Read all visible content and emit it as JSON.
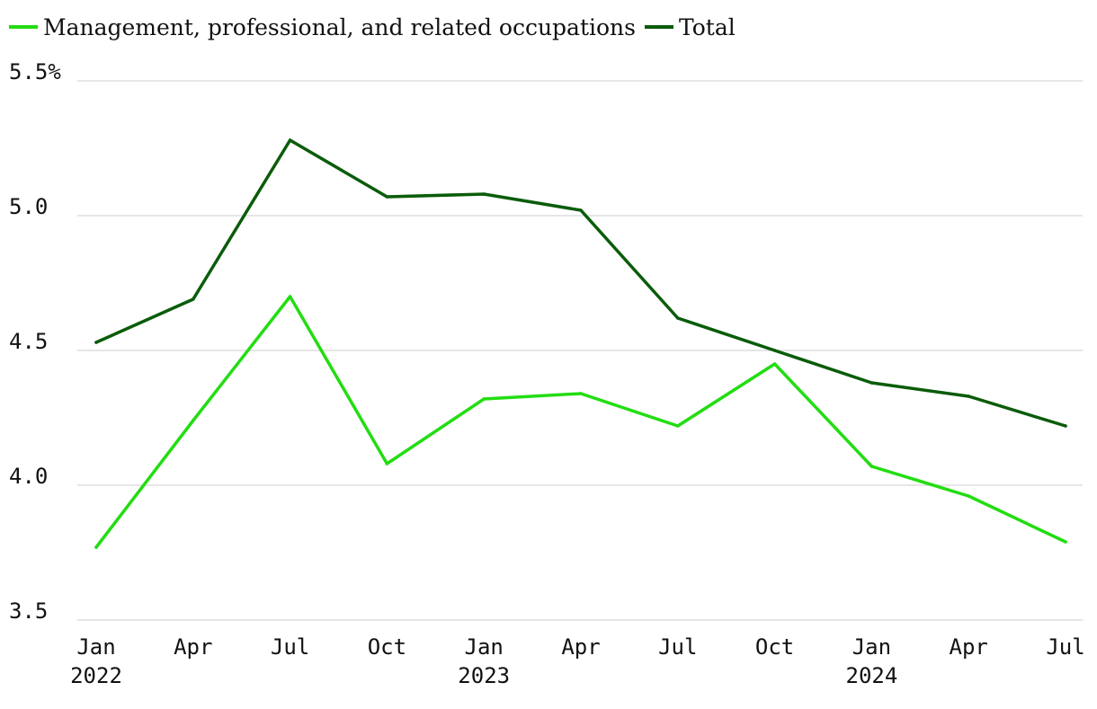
{
  "chart_data": {
    "type": "line",
    "categories": [
      "Jan 2022",
      "Apr 2022",
      "Jul 2022",
      "Oct 2022",
      "Jan 2023",
      "Apr 2023",
      "Jul 2023",
      "Oct 2023",
      "Jan 2024",
      "Apr 2024",
      "Jul 2024"
    ],
    "x_tick_labels": [
      {
        "month": "Jan",
        "year": "2022"
      },
      {
        "month": "Apr",
        "year": ""
      },
      {
        "month": "Jul",
        "year": ""
      },
      {
        "month": "Oct",
        "year": ""
      },
      {
        "month": "Jan",
        "year": "2023"
      },
      {
        "month": "Apr",
        "year": ""
      },
      {
        "month": "Jul",
        "year": ""
      },
      {
        "month": "Oct",
        "year": ""
      },
      {
        "month": "Jan",
        "year": "2024"
      },
      {
        "month": "Apr",
        "year": ""
      },
      {
        "month": "Jul",
        "year": ""
      }
    ],
    "series": [
      {
        "name": "Management, professional, and related occupations",
        "color": "#22dd11",
        "values": [
          3.77,
          4.24,
          4.7,
          4.08,
          4.32,
          4.34,
          4.22,
          4.45,
          4.07,
          3.96,
          3.79
        ]
      },
      {
        "name": "Total",
        "color": "#0a5c0a",
        "values": [
          4.53,
          4.69,
          5.28,
          5.07,
          5.08,
          5.02,
          4.62,
          4.5,
          4.38,
          4.33,
          4.22
        ]
      }
    ],
    "y_ticks": [
      "3.5",
      "4.0",
      "4.5",
      "5.0",
      "5.5%"
    ],
    "y_tick_values": [
      3.5,
      4.0,
      4.5,
      5.0,
      5.5
    ],
    "ylim": [
      3.5,
      5.5
    ],
    "grid": true,
    "legend_position": "top-left",
    "title": "",
    "xlabel": "",
    "ylabel": ""
  }
}
